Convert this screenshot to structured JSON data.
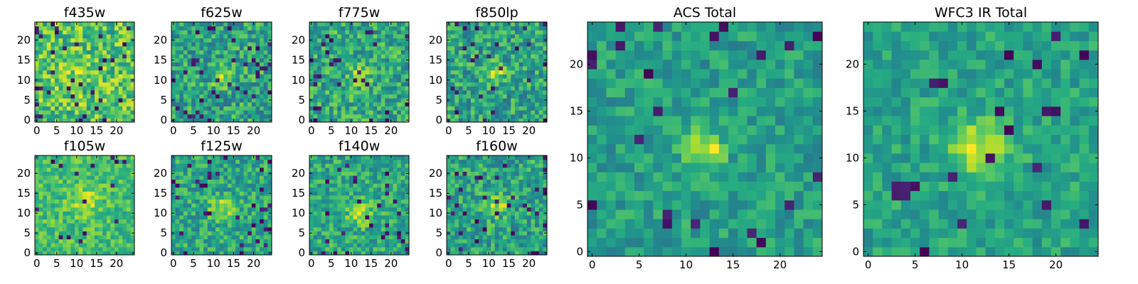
{
  "chart_data": {
    "type": "heatmap",
    "colormap": "viridis",
    "grid": false,
    "panels": [
      {
        "id": "f435w",
        "title": "f435w",
        "size": 25,
        "xticks": [
          0,
          5,
          10,
          15,
          20
        ],
        "yticks": [
          0,
          5,
          10,
          15,
          20
        ],
        "xlim": [
          -0.5,
          24.5
        ],
        "ylim": [
          -0.5,
          24.5
        ],
        "background": 0.72,
        "noise": 0.24,
        "source": {
          "x": 10,
          "y": 12,
          "sigma": 3.0,
          "peak": 0.08
        },
        "seed": 11,
        "dark_fraction": 0.05
      },
      {
        "id": "f625w",
        "title": "f625w",
        "size": 25,
        "xticks": [
          0,
          5,
          10,
          15,
          20
        ],
        "yticks": [
          0,
          5,
          10,
          15,
          20
        ],
        "xlim": [
          -0.5,
          24.5
        ],
        "ylim": [
          -0.5,
          24.5
        ],
        "background": 0.58,
        "noise": 0.22,
        "source": {
          "x": 12,
          "y": 11,
          "sigma": 1.6,
          "peak": 0.35
        },
        "seed": 23,
        "dark_fraction": 0.05
      },
      {
        "id": "f775w",
        "title": "f775w",
        "size": 25,
        "xticks": [
          0,
          5,
          10,
          15,
          20
        ],
        "yticks": [
          0,
          5,
          10,
          15,
          20
        ],
        "xlim": [
          -0.5,
          24.5
        ],
        "ylim": [
          -0.5,
          24.5
        ],
        "background": 0.6,
        "noise": 0.22,
        "source": {
          "x": 12,
          "y": 11,
          "sigma": 1.6,
          "peak": 0.3
        },
        "seed": 37,
        "dark_fraction": 0.05
      },
      {
        "id": "f850lp",
        "title": "f850lp",
        "size": 25,
        "xticks": [
          0,
          5,
          10,
          15,
          20
        ],
        "yticks": [
          0,
          5,
          10,
          15,
          20
        ],
        "xlim": [
          -0.5,
          24.5
        ],
        "ylim": [
          -0.5,
          24.5
        ],
        "background": 0.58,
        "noise": 0.22,
        "source": {
          "x": 12,
          "y": 12,
          "sigma": 1.5,
          "peak": 0.35
        },
        "seed": 41,
        "dark_fraction": 0.05
      },
      {
        "id": "f105w",
        "title": "f105w",
        "size": 25,
        "xticks": [
          0,
          5,
          10,
          15,
          20
        ],
        "yticks": [
          0,
          5,
          10,
          15,
          20
        ],
        "xlim": [
          -0.5,
          24.5
        ],
        "ylim": [
          -0.5,
          24.5
        ],
        "background": 0.7,
        "noise": 0.15,
        "source": {
          "x": 12,
          "y": 13,
          "sigma": 2.5,
          "peak": 0.2
        },
        "seed": 53,
        "dark_fraction": 0.03
      },
      {
        "id": "f125w",
        "title": "f125w",
        "size": 25,
        "xticks": [
          0,
          5,
          10,
          15,
          20
        ],
        "yticks": [
          0,
          5,
          10,
          15,
          20
        ],
        "xlim": [
          -0.5,
          24.5
        ],
        "ylim": [
          -0.5,
          24.5
        ],
        "background": 0.6,
        "noise": 0.18,
        "source": {
          "x": 12,
          "y": 11,
          "sigma": 2.0,
          "peak": 0.3
        },
        "seed": 67,
        "dark_fraction": 0.05
      },
      {
        "id": "f140w",
        "title": "f140w",
        "size": 25,
        "xticks": [
          0,
          5,
          10,
          15,
          20
        ],
        "yticks": [
          0,
          5,
          10,
          15,
          20
        ],
        "xlim": [
          -0.5,
          24.5
        ],
        "ylim": [
          -0.5,
          24.5
        ],
        "background": 0.6,
        "noise": 0.18,
        "source": {
          "x": 12,
          "y": 10,
          "sigma": 2.2,
          "peak": 0.25
        },
        "seed": 79,
        "dark_fraction": 0.05
      },
      {
        "id": "f160w",
        "title": "f160w",
        "size": 25,
        "xticks": [
          0,
          5,
          10,
          15,
          20
        ],
        "yticks": [
          0,
          5,
          10,
          15,
          20
        ],
        "xlim": [
          -0.5,
          24.5
        ],
        "ylim": [
          -0.5,
          24.5
        ],
        "background": 0.58,
        "noise": 0.2,
        "source": {
          "x": 12,
          "y": 12,
          "sigma": 2.0,
          "peak": 0.3
        },
        "seed": 83,
        "dark_fraction": 0.06
      },
      {
        "id": "acs-total",
        "title": "ACS Total",
        "size": 25,
        "xticks": [
          0,
          5,
          10,
          15,
          20
        ],
        "yticks": [
          0,
          5,
          10,
          15,
          20
        ],
        "xlim": [
          -0.5,
          24.5
        ],
        "ylim": [
          -0.5,
          24.5
        ],
        "background": 0.56,
        "noise": 0.14,
        "source": {
          "x": 12,
          "y": 11,
          "sigma": 1.4,
          "peak": 0.42
        },
        "seed": 97,
        "dark_fraction": 0.04
      },
      {
        "id": "wfc3-ir-total",
        "title": "WFC3 IR Total",
        "size": 25,
        "xticks": [
          0,
          5,
          10,
          15,
          20
        ],
        "yticks": [
          0,
          5,
          10,
          15,
          20
        ],
        "xlim": [
          -0.5,
          24.5
        ],
        "ylim": [
          -0.5,
          24.5
        ],
        "background": 0.58,
        "noise": 0.13,
        "source": {
          "x": 12,
          "y": 11,
          "sigma": 2.2,
          "peak": 0.35
        },
        "seed": 101,
        "dark_fraction": 0.04
      }
    ]
  }
}
